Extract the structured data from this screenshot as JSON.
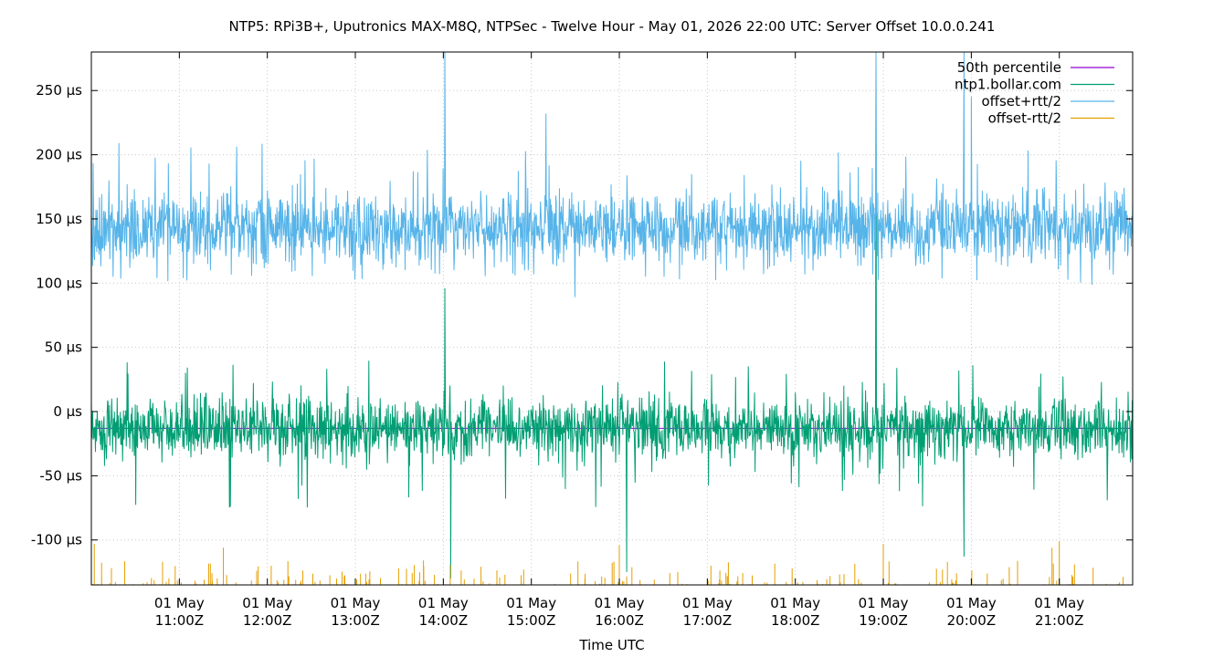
{
  "chart_data": {
    "type": "line",
    "title": "NTP5: RPi3B+, Uputronics MAX-M8Q, NTPSec - Twelve Hour - May 01, 2026 22:00 UTC: Server Offset 10.0.0.241",
    "xlabel": "Time UTC",
    "ylabel": "",
    "ylim": [
      -135,
      280
    ],
    "xlim": [
      "2026-05-01T10:00Z",
      "2026-05-01T21:50Z"
    ],
    "x_ticks": [
      {
        "date": "01 May",
        "time": "11:00Z",
        "x": "2026-05-01T11:00Z"
      },
      {
        "date": "01 May",
        "time": "12:00Z",
        "x": "2026-05-01T12:00Z"
      },
      {
        "date": "01 May",
        "time": "13:00Z",
        "x": "2026-05-01T13:00Z"
      },
      {
        "date": "01 May",
        "time": "14:00Z",
        "x": "2026-05-01T14:00Z"
      },
      {
        "date": "01 May",
        "time": "15:00Z",
        "x": "2026-05-01T15:00Z"
      },
      {
        "date": "01 May",
        "time": "16:00Z",
        "x": "2026-05-01T16:00Z"
      },
      {
        "date": "01 May",
        "time": "17:00Z",
        "x": "2026-05-01T17:00Z"
      },
      {
        "date": "01 May",
        "time": "18:00Z",
        "x": "2026-05-01T18:00Z"
      },
      {
        "date": "01 May",
        "time": "19:00Z",
        "x": "2026-05-01T19:00Z"
      },
      {
        "date": "01 May",
        "time": "20:00Z",
        "x": "2026-05-01T20:00Z"
      },
      {
        "date": "01 May",
        "time": "21:00Z",
        "x": "2026-05-01T21:00Z"
      }
    ],
    "y_ticks": [
      {
        "label": "250 µs",
        "value": 250
      },
      {
        "label": "200 µs",
        "value": 200
      },
      {
        "label": "150 µs",
        "value": 150
      },
      {
        "label": "100 µs",
        "value": 100
      },
      {
        "label": "50 µs",
        "value": 50
      },
      {
        "label": "0 µs",
        "value": 0
      },
      {
        "label": "-50 µs",
        "value": -50
      },
      {
        "label": "-100 µs",
        "value": -100
      }
    ],
    "grid": true,
    "legend_position": "top-right",
    "series": [
      {
        "name": "50th percentile",
        "color": "#9400d3",
        "style": "constant",
        "value": -13
      },
      {
        "name": "ntp1.bollar.com",
        "color": "#009e73",
        "style": "noise",
        "mean": -13,
        "spread": 12,
        "outliers_high": 40,
        "outliers_low": -75,
        "spikes": [
          {
            "x": "2026-05-01T14:01Z",
            "value": 96
          },
          {
            "x": "2026-05-01T14:05Z",
            "value": -130
          },
          {
            "x": "2026-05-01T16:05Z",
            "value": -125
          },
          {
            "x": "2026-05-01T18:55Z",
            "value": 280
          },
          {
            "x": "2026-05-01T19:55Z",
            "value": -113
          }
        ]
      },
      {
        "name": "offset+rtt/2",
        "color": "#56b4e9",
        "style": "noise",
        "mean": 143,
        "spread": 14,
        "outliers_high": 210,
        "outliers_low": 100,
        "spikes": [
          {
            "x": "2026-05-01T14:01Z",
            "value": 280
          },
          {
            "x": "2026-05-01T15:10Z",
            "value": 232
          },
          {
            "x": "2026-05-01T18:55Z",
            "value": 280
          },
          {
            "x": "2026-05-01T19:55Z",
            "value": 280
          },
          {
            "x": "2026-05-01T20:00Z",
            "value": 245
          }
        ]
      },
      {
        "name": "offset-rtt/2",
        "color": "#e69f00",
        "style": "floor",
        "floor": -135,
        "max": -100,
        "spikes": [
          {
            "x": "2026-05-01T10:02Z",
            "value": -103
          },
          {
            "x": "2026-05-01T11:30Z",
            "value": -106
          },
          {
            "x": "2026-05-01T16:00Z",
            "value": -104
          },
          {
            "x": "2026-05-01T19:00Z",
            "value": -103
          },
          {
            "x": "2026-05-01T20:55Z",
            "value": -106
          },
          {
            "x": "2026-05-01T21:00Z",
            "value": -101
          }
        ]
      }
    ]
  }
}
